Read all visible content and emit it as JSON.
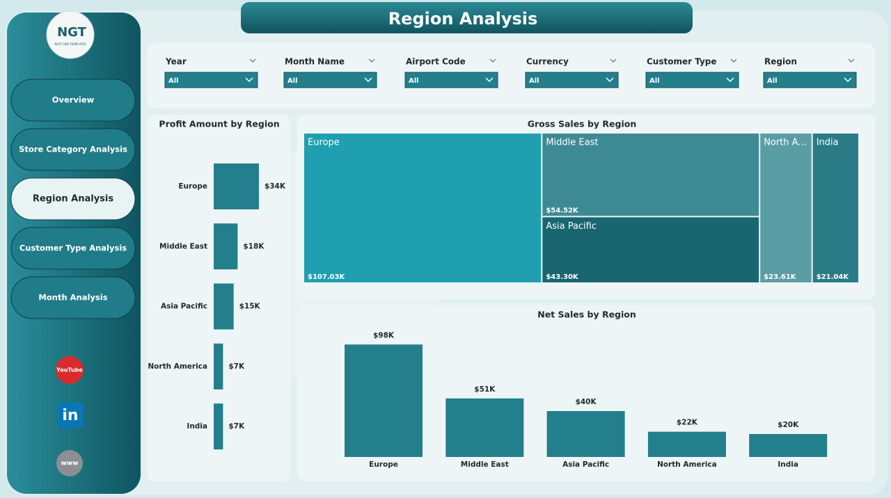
{
  "header": {
    "title": "Region Analysis"
  },
  "logo": {
    "text": "NGT",
    "subtitle": "NEXT GEN TEMPLATES"
  },
  "nav": [
    "Overview",
    "Store Category Analysis",
    "Region Analysis",
    "Customer Type Analysis",
    "Month Analysis"
  ],
  "nav_active": 2,
  "social": [
    "YouTube",
    "in",
    "www"
  ],
  "filters": [
    {
      "label": "Year",
      "value": "All"
    },
    {
      "label": "Month Name",
      "value": "All"
    },
    {
      "label": "Airport Code",
      "value": "All"
    },
    {
      "label": "Currency",
      "value": "All"
    },
    {
      "label": "Customer Type",
      "value": "All"
    },
    {
      "label": "Region",
      "value": "All"
    }
  ],
  "chart_data": [
    {
      "type": "barh",
      "title": "Profit Amount by Region",
      "color": "#237f8c",
      "categories": [
        "Europe",
        "Middle East",
        "Asia Pacific",
        "North America",
        "India"
      ],
      "values": [
        34,
        18,
        15,
        7,
        7
      ],
      "value_labels": [
        "$34K",
        "$18K",
        "$15K",
        "$7K",
        "$7K"
      ]
    },
    {
      "type": "treemap",
      "title": "Gross Sales by Region",
      "categories": [
        "Europe",
        "Middle East",
        "Asia Pacific",
        "North A...",
        "India"
      ],
      "values": [
        107.03,
        54.52,
        43.3,
        23.61,
        21.04
      ],
      "value_labels": [
        "$107.03K",
        "$54.52K",
        "$43.30K",
        "$23.61K",
        "$21.04K"
      ],
      "colors": [
        "#1f9fb0",
        "#3d8a94",
        "#1a6670",
        "#5b9da5",
        "#2a7b86"
      ]
    },
    {
      "type": "bar",
      "title": "Net Sales by Region",
      "color": "#237f8c",
      "categories": [
        "Europe",
        "Middle East",
        "Asia Pacific",
        "North America",
        "India"
      ],
      "values": [
        98,
        51,
        40,
        22,
        20
      ],
      "value_labels": [
        "$98K",
        "$51K",
        "$40K",
        "$22K",
        "$20K"
      ]
    }
  ]
}
